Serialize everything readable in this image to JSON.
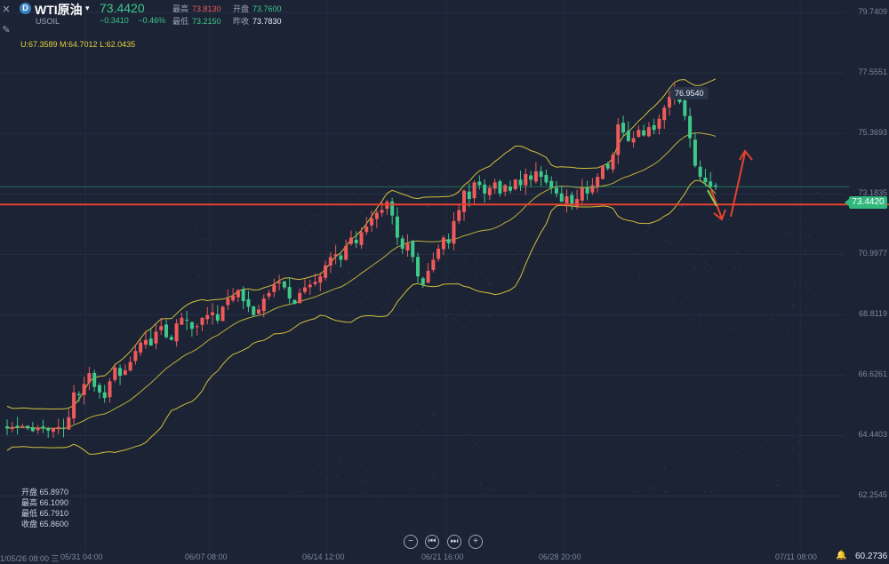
{
  "header": {
    "symbol_name": "WTI原油",
    "symbol_code": "USOIL",
    "last_price": "73.4420",
    "change": "−0.3410",
    "change_pct": "−0.46%",
    "high_label": "最高",
    "high_value": "73.8130",
    "low_label": "最低",
    "low_value": "73.2150",
    "open_label": "开盘",
    "open_value": "73.7600",
    "prev_close_label": "昨收",
    "prev_close_value": "73.7830"
  },
  "bollinger": "U:67.3589  M:64.7012  L:62.0435",
  "hover_ohlc": {
    "open": "开盘 65.8970",
    "high": "最高 66.1090",
    "low": "最低 65.7910",
    "close": "收盘 65.8600"
  },
  "price_tag": "73.4420",
  "peak_tag": "76.9540",
  "bottom_right_value": "60.2736",
  "controls": [
    "−",
    "⏮",
    "⏭",
    "+"
  ],
  "icons": [
    "close-icon",
    "pencil-icon",
    "bell-icon"
  ],
  "colors": {
    "up": "#f05a5a",
    "down": "#3ec98a",
    "band": "#e8d23c",
    "support_line": "#e8412f",
    "background": "#1b2335"
  },
  "chart_data": {
    "type": "candlestick",
    "y_ticks": [
      "79.7409",
      "77.5551",
      "75.3693",
      "73.1835",
      "70.9977",
      "68.8119",
      "66.6261",
      "64.4403",
      "62.2545"
    ],
    "x_ticks": [
      "1/05/26 08:00 三",
      "05/31 04:00",
      "06/07 08:00",
      "06/14 12:00",
      "06/21 16:00",
      "06/28 20:00",
      "07/11 08:00"
    ],
    "ylim": [
      60.2736,
      80.2
    ],
    "support_level": 72.8,
    "trend": [
      [
        64.7,
        64.75,
        64.73,
        64.78,
        64.7,
        64.6,
        64.72,
        64.7,
        64.62,
        64.7,
        64.75,
        64.68
      ],
      [
        65.1,
        66.0,
        65.9,
        66.3,
        66.7,
        66.2,
        66.0,
        65.8,
        66.4,
        66.9,
        66.6,
        66.8
      ],
      [
        67.1,
        67.5,
        67.8,
        67.9,
        67.7,
        68.2,
        68.4,
        68.0,
        67.9,
        68.5,
        68.7,
        68.6
      ],
      [
        68.3,
        68.4,
        68.7,
        68.8,
        68.9,
        68.6,
        69.1,
        69.4,
        69.5,
        69.7,
        69.3,
        69.1
      ],
      [
        68.8,
        69.0,
        69.4,
        69.6,
        69.9,
        70.0,
        69.8,
        69.4,
        69.2,
        69.6,
        69.8,
        69.9
      ],
      [
        70.0,
        70.2,
        70.6,
        70.9,
        71.0,
        70.8,
        71.3,
        71.6,
        71.4,
        71.8,
        72.0,
        72.3
      ],
      [
        72.5,
        72.6,
        72.9,
        72.4,
        71.6,
        71.2,
        71.4,
        70.9,
        70.2,
        69.9,
        70.4,
        70.8
      ],
      [
        71.2,
        71.6,
        71.4,
        72.2,
        72.6,
        73.3,
        73.0,
        73.6,
        73.5,
        73.2,
        73.4,
        73.6
      ],
      [
        73.2,
        73.5,
        73.3,
        73.7,
        73.5,
        73.9,
        73.7,
        74.0,
        73.8,
        73.6,
        73.4,
        73.2
      ],
      [
        72.9,
        73.1,
        72.8,
        73.0,
        73.4,
        73.2,
        73.5,
        73.8,
        74.2,
        74.1,
        74.6,
        75.7
      ],
      [
        75.4,
        75.1,
        75.2,
        75.5,
        75.3,
        75.6,
        75.5,
        75.9,
        76.3,
        76.7,
        76.95,
        76.5
      ],
      [
        76.0,
        75.2,
        74.2,
        73.8,
        73.6,
        73.44,
        73.44
      ]
    ]
  }
}
